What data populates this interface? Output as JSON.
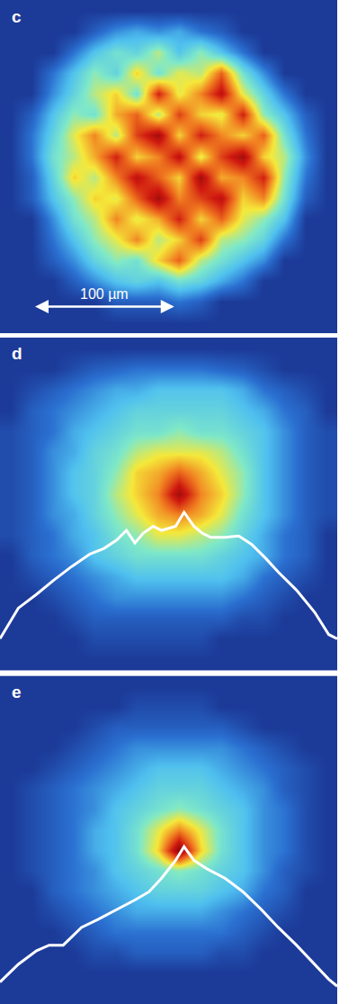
{
  "chart_data": [
    {
      "type": "heatmap",
      "label": "c",
      "tick_labels": false,
      "xlim": [
        0,
        240
      ],
      "ylim": [
        0,
        240
      ],
      "zlim": [
        0,
        1
      ],
      "colors": [
        "#1c3a98",
        "#2a6fd0",
        "#4fc0ef",
        "#7fe8c8",
        "#f5e83a",
        "#f07a20",
        "#d01a10",
        "#8a0808"
      ],
      "scale_bar": {
        "label": "100 µm",
        "length": 100
      },
      "x": [
        7.5,
        22.5,
        37.5,
        52.5,
        67.5,
        82.5,
        97.5,
        112.5,
        127.5,
        142.5,
        157.5,
        172.5,
        187.5,
        202.5,
        217.5,
        232.5
      ],
      "y": [
        232.5,
        217.5,
        202.5,
        187.5,
        172.5,
        157.5,
        142.5,
        127.5,
        112.5,
        97.5,
        82.5,
        67.5,
        52.5,
        37.5,
        22.5,
        7.5
      ],
      "z": [
        [
          0,
          0,
          0,
          0,
          0,
          0,
          0,
          0,
          0,
          0,
          0,
          0,
          0,
          0,
          0,
          0
        ],
        [
          0,
          0,
          0,
          0,
          0.1,
          0.2,
          0.25,
          0.2,
          0.25,
          0.15,
          0.1,
          0,
          0,
          0,
          0,
          0
        ],
        [
          0,
          0,
          0,
          0.15,
          0.3,
          0.4,
          0.35,
          0.5,
          0.3,
          0.45,
          0.3,
          0.15,
          0,
          0,
          0,
          0
        ],
        [
          0,
          0,
          0.15,
          0.3,
          0.45,
          0.35,
          0.6,
          0.4,
          0.55,
          0.5,
          0.75,
          0.4,
          0.2,
          0,
          0,
          0
        ],
        [
          0,
          0,
          0.2,
          0.35,
          0.5,
          0.6,
          0.4,
          0.85,
          0.55,
          0.7,
          0.9,
          0.55,
          0.35,
          0.15,
          0,
          0
        ],
        [
          0,
          0.1,
          0.3,
          0.45,
          0.4,
          0.65,
          0.75,
          0.5,
          0.8,
          0.6,
          0.55,
          0.85,
          0.45,
          0.3,
          0.1,
          0
        ],
        [
          0,
          0.15,
          0.35,
          0.55,
          0.7,
          0.5,
          0.8,
          0.95,
          0.6,
          0.85,
          0.7,
          0.6,
          0.75,
          0.4,
          0.15,
          0
        ],
        [
          0,
          0.15,
          0.4,
          0.5,
          0.65,
          0.85,
          0.6,
          0.7,
          0.9,
          0.55,
          0.8,
          0.95,
          0.6,
          0.5,
          0.2,
          0
        ],
        [
          0,
          0.1,
          0.35,
          0.6,
          0.5,
          0.7,
          0.9,
          0.75,
          0.6,
          0.95,
          0.65,
          0.7,
          0.85,
          0.45,
          0.15,
          0
        ],
        [
          0,
          0.1,
          0.3,
          0.45,
          0.6,
          0.55,
          0.75,
          0.95,
          0.7,
          0.8,
          0.9,
          0.6,
          0.7,
          0.4,
          0.1,
          0
        ],
        [
          0,
          0,
          0.2,
          0.4,
          0.5,
          0.7,
          0.55,
          0.65,
          0.85,
          0.6,
          0.75,
          0.55,
          0.45,
          0.3,
          0,
          0
        ],
        [
          0,
          0,
          0.15,
          0.3,
          0.45,
          0.55,
          0.7,
          0.5,
          0.6,
          0.8,
          0.5,
          0.45,
          0.35,
          0.15,
          0,
          0
        ],
        [
          0,
          0,
          0.1,
          0.2,
          0.35,
          0.45,
          0.4,
          0.6,
          0.75,
          0.5,
          0.4,
          0.3,
          0.2,
          0,
          0,
          0
        ],
        [
          0,
          0,
          0,
          0.1,
          0.2,
          0.3,
          0.35,
          0.3,
          0.4,
          0.35,
          0.25,
          0.15,
          0,
          0,
          0,
          0
        ],
        [
          0,
          0,
          0,
          0,
          0,
          0.1,
          0.1,
          0.1,
          0.15,
          0.1,
          0,
          0,
          0,
          0,
          0,
          0
        ],
        [
          0,
          0,
          0,
          0,
          0,
          0,
          0,
          0,
          0,
          0,
          0,
          0,
          0,
          0,
          0,
          0
        ]
      ]
    },
    {
      "type": "heatmap",
      "label": "d",
      "tick_labels": false,
      "xlim": [
        0,
        240
      ],
      "ylim": [
        0,
        240
      ],
      "zlim": [
        0,
        1
      ],
      "colors": [
        "#1c3a98",
        "#2a6fd0",
        "#4fc0ef",
        "#7fe8c8",
        "#f5e83a",
        "#f07a20",
        "#d01a10",
        "#8a0808"
      ],
      "x": [
        7.5,
        22.5,
        37.5,
        52.5,
        67.5,
        82.5,
        97.5,
        112.5,
        127.5,
        142.5,
        157.5,
        172.5,
        187.5,
        202.5,
        217.5,
        232.5
      ],
      "y": [
        232.5,
        217.5,
        202.5,
        187.5,
        172.5,
        157.5,
        142.5,
        127.5,
        112.5,
        97.5,
        82.5,
        67.5,
        52.5,
        37.5,
        22.5,
        7.5
      ],
      "z": [
        [
          0,
          0,
          0,
          0,
          0,
          0,
          0,
          0,
          0,
          0,
          0,
          0,
          0,
          0,
          0,
          0
        ],
        [
          0,
          0,
          0,
          0.05,
          0.1,
          0.12,
          0.15,
          0.15,
          0.15,
          0.15,
          0.12,
          0.1,
          0.05,
          0,
          0,
          0
        ],
        [
          0,
          0.05,
          0.1,
          0.15,
          0.2,
          0.25,
          0.25,
          0.3,
          0.3,
          0.3,
          0.3,
          0.25,
          0.15,
          0.1,
          0.05,
          0
        ],
        [
          0,
          0.1,
          0.15,
          0.2,
          0.25,
          0.3,
          0.35,
          0.35,
          0.35,
          0.35,
          0.35,
          0.3,
          0.25,
          0.15,
          0.1,
          0
        ],
        [
          0.05,
          0.1,
          0.15,
          0.25,
          0.3,
          0.35,
          0.4,
          0.4,
          0.45,
          0.4,
          0.4,
          0.35,
          0.3,
          0.2,
          0.1,
          0.05
        ],
        [
          0.05,
          0.1,
          0.2,
          0.25,
          0.35,
          0.4,
          0.5,
          0.55,
          0.55,
          0.55,
          0.5,
          0.4,
          0.3,
          0.2,
          0.1,
          0.05
        ],
        [
          0.05,
          0.1,
          0.2,
          0.3,
          0.35,
          0.45,
          0.6,
          0.65,
          0.75,
          0.65,
          0.55,
          0.45,
          0.3,
          0.2,
          0.1,
          0.05
        ],
        [
          0.05,
          0.1,
          0.2,
          0.3,
          0.35,
          0.5,
          0.6,
          0.7,
          0.95,
          0.7,
          0.6,
          0.45,
          0.3,
          0.2,
          0.1,
          0.05
        ],
        [
          0.05,
          0.1,
          0.2,
          0.25,
          0.35,
          0.45,
          0.55,
          0.65,
          0.7,
          0.65,
          0.55,
          0.4,
          0.3,
          0.2,
          0.1,
          0.05
        ],
        [
          0.05,
          0.1,
          0.15,
          0.25,
          0.3,
          0.4,
          0.45,
          0.55,
          0.55,
          0.5,
          0.45,
          0.35,
          0.25,
          0.15,
          0.1,
          0
        ],
        [
          0,
          0.1,
          0.15,
          0.2,
          0.3,
          0.35,
          0.4,
          0.4,
          0.4,
          0.4,
          0.35,
          0.3,
          0.25,
          0.15,
          0.1,
          0
        ],
        [
          0,
          0.05,
          0.1,
          0.15,
          0.2,
          0.25,
          0.3,
          0.3,
          0.3,
          0.3,
          0.3,
          0.25,
          0.15,
          0.1,
          0.05,
          0
        ],
        [
          0,
          0,
          0.05,
          0.1,
          0.15,
          0.2,
          0.2,
          0.2,
          0.2,
          0.2,
          0.2,
          0.15,
          0.1,
          0.05,
          0,
          0
        ],
        [
          0,
          0,
          0,
          0.05,
          0.1,
          0.1,
          0.1,
          0.1,
          0.1,
          0.1,
          0.1,
          0.05,
          0.05,
          0,
          0,
          0
        ],
        [
          0,
          0,
          0,
          0,
          0.05,
          0.05,
          0.05,
          0.05,
          0.05,
          0.05,
          0,
          0,
          0,
          0,
          0,
          0
        ],
        [
          0,
          0,
          0,
          0,
          0,
          0,
          0,
          0,
          0,
          0,
          0,
          0,
          0,
          0,
          0,
          0
        ]
      ],
      "series": [
        {
          "type": "line",
          "color": "#ffffff",
          "x": [
            0,
            13,
            26,
            38,
            51,
            64,
            74,
            83,
            90,
            96,
            102,
            109,
            115,
            125,
            131,
            138,
            144,
            150,
            160,
            170,
            179,
            189,
            198,
            211,
            224,
            234,
            240
          ],
          "values": [
            23,
            45,
            55,
            65,
            75,
            84,
            88,
            94,
            101,
            92,
            99,
            104,
            101,
            104,
            114,
            104,
            99,
            96,
            96,
            97,
            91,
            81,
            71,
            58,
            42,
            26,
            23
          ]
        }
      ]
    },
    {
      "type": "heatmap",
      "label": "e",
      "tick_labels": false,
      "xlim": [
        0,
        240
      ],
      "ylim": [
        0,
        240
      ],
      "zlim": [
        0,
        1
      ],
      "colors": [
        "#1c3a98",
        "#2a6fd0",
        "#4fc0ef",
        "#7fe8c8",
        "#f5e83a",
        "#f07a20",
        "#d01a10",
        "#8a0808"
      ],
      "x": [
        7.5,
        22.5,
        37.5,
        52.5,
        67.5,
        82.5,
        97.5,
        112.5,
        127.5,
        142.5,
        157.5,
        172.5,
        187.5,
        202.5,
        217.5,
        232.5
      ],
      "y": [
        232.5,
        217.5,
        202.5,
        187.5,
        172.5,
        157.5,
        142.5,
        127.5,
        112.5,
        97.5,
        82.5,
        67.5,
        52.5,
        37.5,
        22.5,
        7.5
      ],
      "z": [
        [
          0,
          0,
          0,
          0,
          0,
          0,
          0,
          0,
          0,
          0,
          0,
          0,
          0,
          0,
          0,
          0
        ],
        [
          0,
          0,
          0,
          0,
          0,
          0,
          0.05,
          0.05,
          0.05,
          0.05,
          0,
          0,
          0,
          0,
          0,
          0
        ],
        [
          0,
          0,
          0,
          0,
          0.05,
          0.1,
          0.1,
          0.1,
          0.1,
          0.1,
          0.1,
          0.05,
          0,
          0,
          0,
          0
        ],
        [
          0,
          0,
          0,
          0.05,
          0.1,
          0.15,
          0.2,
          0.2,
          0.2,
          0.2,
          0.2,
          0.15,
          0.1,
          0.05,
          0,
          0
        ],
        [
          0,
          0,
          0.05,
          0.1,
          0.15,
          0.2,
          0.25,
          0.3,
          0.3,
          0.3,
          0.25,
          0.2,
          0.15,
          0.1,
          0.05,
          0
        ],
        [
          0,
          0.05,
          0.1,
          0.15,
          0.2,
          0.25,
          0.3,
          0.35,
          0.35,
          0.35,
          0.3,
          0.25,
          0.2,
          0.1,
          0.05,
          0
        ],
        [
          0,
          0.05,
          0.1,
          0.15,
          0.2,
          0.3,
          0.35,
          0.4,
          0.45,
          0.4,
          0.35,
          0.3,
          0.2,
          0.15,
          0.05,
          0
        ],
        [
          0,
          0.05,
          0.1,
          0.15,
          0.25,
          0.3,
          0.4,
          0.55,
          0.7,
          0.55,
          0.4,
          0.3,
          0.2,
          0.15,
          0.05,
          0
        ],
        [
          0,
          0.05,
          0.1,
          0.15,
          0.25,
          0.3,
          0.4,
          0.6,
          1.0,
          0.6,
          0.4,
          0.3,
          0.2,
          0.15,
          0.05,
          0
        ],
        [
          0,
          0.05,
          0.1,
          0.15,
          0.2,
          0.3,
          0.35,
          0.4,
          0.45,
          0.4,
          0.35,
          0.3,
          0.2,
          0.1,
          0.05,
          0
        ],
        [
          0,
          0,
          0.1,
          0.15,
          0.2,
          0.25,
          0.3,
          0.35,
          0.35,
          0.35,
          0.3,
          0.25,
          0.15,
          0.1,
          0,
          0
        ],
        [
          0,
          0,
          0.05,
          0.1,
          0.15,
          0.2,
          0.25,
          0.25,
          0.25,
          0.25,
          0.2,
          0.15,
          0.1,
          0.05,
          0,
          0
        ],
        [
          0,
          0,
          0,
          0.05,
          0.1,
          0.15,
          0.15,
          0.15,
          0.15,
          0.15,
          0.15,
          0.1,
          0.05,
          0,
          0,
          0
        ],
        [
          0,
          0,
          0,
          0,
          0.05,
          0.05,
          0.1,
          0.1,
          0.1,
          0.1,
          0.05,
          0.05,
          0,
          0,
          0,
          0
        ],
        [
          0,
          0,
          0,
          0,
          0,
          0,
          0,
          0,
          0,
          0,
          0,
          0,
          0,
          0,
          0,
          0
        ],
        [
          0,
          0,
          0,
          0,
          0,
          0,
          0,
          0,
          0,
          0,
          0,
          0,
          0,
          0,
          0,
          0
        ]
      ],
      "series": [
        {
          "type": "line",
          "color": "#ffffff",
          "x": [
            0,
            13,
            26,
            35,
            45,
            58,
            70,
            83,
            96,
            106,
            115,
            125,
            131,
            138,
            147,
            160,
            173,
            186,
            198,
            211,
            224,
            234,
            240
          ],
          "values": [
            16,
            29,
            39,
            43,
            43,
            56,
            62,
            69,
            76,
            82,
            92,
            105,
            115,
            105,
            99,
            92,
            82,
            69,
            56,
            43,
            29,
            18,
            13
          ]
        }
      ]
    }
  ]
}
